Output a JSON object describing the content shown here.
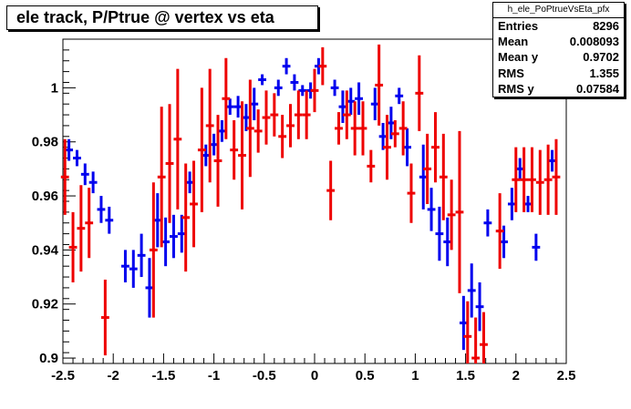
{
  "title": "ele track, P/Ptrue @ vertex vs eta",
  "stats": {
    "name": "h_ele_PoPtrueVsEta_pfx",
    "rows": [
      {
        "label": "Entries",
        "value": "8296"
      },
      {
        "label": "Mean",
        "value": "0.008093"
      },
      {
        "label": "Mean y",
        "value": "0.9702"
      },
      {
        "label": "RMS",
        "value": "1.355"
      },
      {
        "label": "RMS y",
        "value": "0.07584"
      }
    ]
  },
  "chart_data": {
    "type": "scatter",
    "title": "ele track, P/Ptrue @ vertex vs eta",
    "xlabel": "",
    "ylabel": "",
    "xlim": [
      -2.5,
      2.5
    ],
    "ylim": [
      0.898,
      1.018
    ],
    "grid": false,
    "legend": "none",
    "x_ticks": [
      "-2.5",
      "-2",
      "-1.5",
      "-1",
      "-0.5",
      "0",
      "0.5",
      "1",
      "1.5",
      "2",
      "2.5"
    ],
    "y_ticks": [
      "0.9",
      "0.92",
      "0.94",
      "0.96",
      "0.98",
      "1"
    ],
    "x_bin_half_width": 0.04,
    "series": [
      {
        "color": "#0000ee",
        "x": [
          -2.44,
          -2.36,
          -2.28,
          -2.2,
          -2.12,
          -2.04,
          -1.88,
          -1.8,
          -1.72,
          -1.64,
          -1.56,
          -1.48,
          -1.4,
          -1.32,
          -1.24,
          -1.08,
          -1.0,
          -0.92,
          -0.84,
          -0.76,
          -0.68,
          -0.6,
          -0.52,
          -0.36,
          -0.28,
          -0.2,
          -0.12,
          -0.04,
          0.04,
          0.2,
          0.28,
          0.36,
          0.44,
          0.6,
          0.68,
          0.76,
          0.84,
          0.92,
          1.08,
          1.16,
          1.24,
          1.32,
          1.48,
          1.56,
          1.64,
          1.72,
          1.88,
          1.96,
          2.04,
          2.12,
          2.2,
          2.36
        ],
        "y": [
          0.977,
          0.974,
          0.968,
          0.965,
          0.955,
          0.951,
          0.934,
          0.933,
          0.938,
          0.926,
          0.951,
          0.943,
          0.945,
          0.946,
          0.965,
          0.975,
          0.979,
          0.984,
          0.993,
          0.993,
          0.989,
          0.994,
          1.003,
          1.0,
          1.008,
          1.002,
          0.999,
          0.999,
          1.008,
          1.0,
          0.993,
          0.995,
          0.996,
          0.994,
          0.982,
          0.987,
          0.997,
          0.978,
          0.967,
          0.955,
          0.946,
          0.943,
          0.913,
          0.925,
          0.919,
          0.95,
          0.943,
          0.957,
          0.97,
          0.957,
          0.941,
          0.973
        ],
        "err": [
          0.004,
          0.003,
          0.004,
          0.004,
          0.005,
          0.005,
          0.006,
          0.007,
          0.008,
          0.011,
          0.01,
          0.009,
          0.008,
          0.007,
          0.004,
          0.004,
          0.004,
          0.004,
          0.003,
          0.004,
          0.005,
          0.006,
          0.002,
          0.003,
          0.003,
          0.003,
          0.002,
          0.003,
          0.003,
          0.003,
          0.006,
          0.005,
          0.006,
          0.006,
          0.005,
          0.006,
          0.003,
          0.007,
          0.012,
          0.008,
          0.01,
          0.009,
          0.01,
          0.01,
          0.009,
          0.005,
          0.006,
          0.006,
          0.004,
          0.003,
          0.005,
          0.004
        ]
      },
      {
        "color": "#ee0000",
        "x": [
          -2.48,
          -2.4,
          -2.32,
          -2.24,
          -2.08,
          -1.6,
          -1.52,
          -1.44,
          -1.36,
          -1.28,
          -1.2,
          -1.12,
          -1.04,
          -0.96,
          -0.88,
          -0.8,
          -0.72,
          -0.64,
          -0.56,
          -0.48,
          -0.4,
          -0.32,
          -0.24,
          -0.16,
          -0.08,
          0.0,
          0.08,
          0.16,
          0.24,
          0.32,
          0.4,
          0.48,
          0.56,
          0.64,
          0.72,
          0.8,
          0.88,
          0.96,
          1.04,
          1.12,
          1.2,
          1.28,
          1.36,
          1.44,
          1.52,
          1.6,
          1.68,
          1.84,
          2.0,
          2.08,
          2.16,
          2.24,
          2.32,
          2.4
        ],
        "y": [
          0.967,
          0.941,
          0.948,
          0.95,
          0.915,
          0.94,
          0.967,
          0.972,
          0.981,
          0.952,
          0.957,
          0.977,
          0.986,
          0.973,
          0.996,
          0.977,
          0.975,
          0.985,
          0.984,
          0.989,
          0.99,
          0.982,
          0.986,
          0.99,
          0.99,
          0.999,
          1.008,
          0.962,
          0.985,
          0.99,
          0.985,
          0.985,
          0.971,
          1.001,
          0.978,
          0.983,
          0.985,
          0.961,
          0.998,
          0.97,
          0.978,
          0.967,
          0.953,
          0.954,
          0.908,
          0.9,
          0.905,
          0.947,
          0.966,
          0.966,
          0.966,
          0.965,
          0.966,
          0.967
        ],
        "err": [
          0.014,
          0.013,
          0.016,
          0.013,
          0.014,
          0.025,
          0.026,
          0.022,
          0.026,
          0.02,
          0.016,
          0.023,
          0.021,
          0.017,
          0.015,
          0.011,
          0.02,
          0.018,
          0.008,
          0.01,
          0.008,
          0.008,
          0.008,
          0.009,
          0.009,
          0.008,
          0.007,
          0.011,
          0.006,
          0.009,
          0.01,
          0.01,
          0.006,
          0.015,
          0.012,
          0.005,
          0.01,
          0.011,
          0.014,
          0.013,
          0.013,
          0.016,
          0.013,
          0.03,
          0.013,
          0.015,
          0.012,
          0.014,
          0.012,
          0.012,
          0.012,
          0.012,
          0.013,
          0.014
        ]
      }
    ]
  }
}
